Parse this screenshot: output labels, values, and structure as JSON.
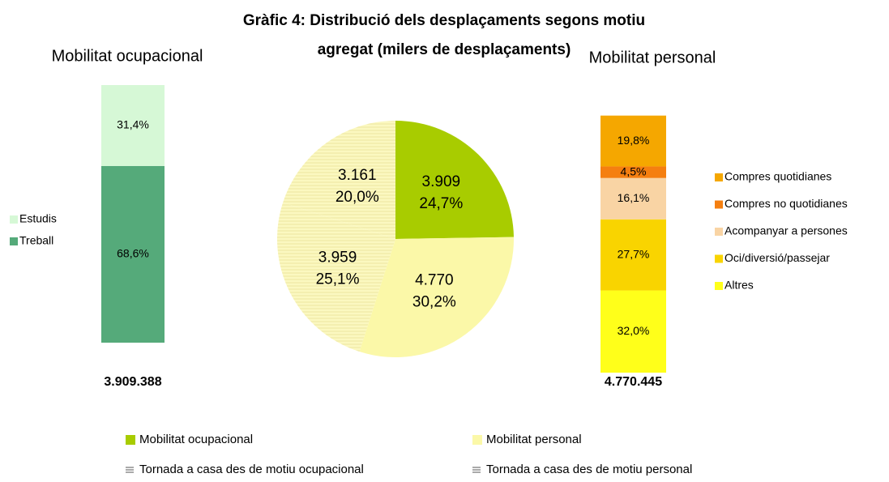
{
  "title": "Gràfic 4: Distribució dels desplaçaments segons motiu agregat (milers de desplaçaments)",
  "chart_data": [
    {
      "type": "pie",
      "categories": [
        "Mobilitat ocupacional",
        "Mobilitat personal",
        "Tornada a casa des de motiu personal",
        "Tornada a casa des de motiu ocupacional"
      ],
      "values": [
        3909,
        4770,
        3959,
        3161
      ],
      "value_labels": [
        "3.909",
        "4.770",
        "3.959",
        "3.161"
      ],
      "percents": [
        {
          "value": 24.7,
          "label": "24,7%"
        },
        {
          "value": 30.2,
          "label": "30,2%"
        },
        {
          "value": 25.1,
          "label": "25,1%"
        },
        {
          "value": 20.0,
          "label": "20,0%"
        }
      ],
      "colors": [
        "#a8cc00",
        "#fbf8a8",
        "#fbf8a8",
        "#fbf8a8"
      ],
      "hatched": [
        false,
        false,
        true,
        true
      ]
    },
    {
      "type": "stacked-bar",
      "title": "Mobilitat ocupacional",
      "ylim": [
        0,
        100
      ],
      "total": {
        "value": 3909388,
        "label": "3.909.388"
      },
      "series": [
        {
          "name": "Treball",
          "color": "#55aa7a",
          "values": [
            68.6
          ],
          "value_labels": [
            "68,6%"
          ]
        },
        {
          "name": "Estudis",
          "color": "#d6f8d6",
          "values": [
            31.4
          ],
          "value_labels": [
            "31,4%"
          ]
        }
      ]
    },
    {
      "type": "stacked-bar",
      "title": "Mobilitat personal",
      "ylim": [
        0,
        100
      ],
      "total": {
        "value": 4770445,
        "label": "4.770.445"
      },
      "series": [
        {
          "name": "Altres",
          "color": "#ffff1a",
          "values": [
            32.0
          ],
          "value_labels": [
            "32,0%"
          ]
        },
        {
          "name": "Oci/diversió/passejar",
          "color": "#f9d400",
          "values": [
            27.7
          ],
          "value_labels": [
            "27,7%"
          ]
        },
        {
          "name": "Acompanyar a persones",
          "color": "#f9d4a4",
          "values": [
            16.1
          ],
          "value_labels": [
            "16,1%"
          ]
        },
        {
          "name": "Compres no quotidianes",
          "color": "#f57f10",
          "values": [
            4.5
          ],
          "value_labels": [
            "4,5%"
          ]
        },
        {
          "name": "Compres quotidianes",
          "color": "#f5a700",
          "values": [
            19.8
          ],
          "value_labels": [
            "19,8%"
          ]
        }
      ]
    }
  ]
}
